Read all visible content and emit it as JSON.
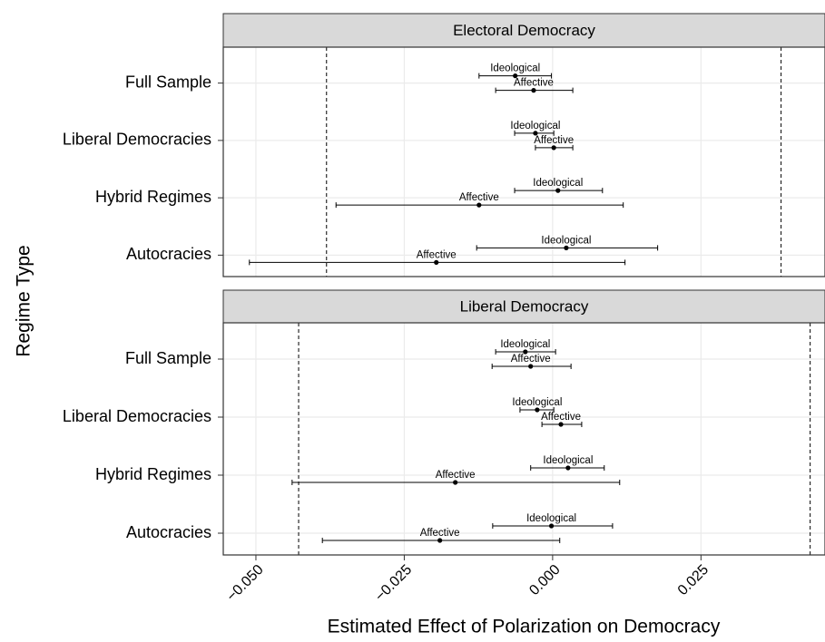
{
  "chart_data": [
    {
      "type": "pointrange",
      "title": "Electoral Democracy",
      "ylabel": "Regime Type",
      "categories": [
        "Full Sample",
        "Liberal Democracies",
        "Hybrid Regimes",
        "Autocracies"
      ],
      "series": [
        {
          "name": "Ideological",
          "color": "#000000",
          "values": [
            -0.0063,
            -0.0029,
            0.0009,
            0.0023
          ],
          "lower": [
            -0.0124,
            -0.0064,
            -0.0064,
            -0.0128
          ],
          "upper": [
            -0.0002,
            0.0002,
            0.0084,
            0.0177
          ]
        },
        {
          "name": "Affective",
          "color": "#000000",
          "values": [
            -0.0032,
            0.0002,
            -0.0124,
            -0.0196
          ],
          "lower": [
            -0.0096,
            -0.0029,
            -0.0365,
            -0.0511
          ],
          "upper": [
            0.0034,
            0.0034,
            0.0119,
            0.0122
          ]
        }
      ],
      "vlines": [
        -0.0381,
        0.0385
      ],
      "xlim": [
        -0.0555,
        0.0459
      ],
      "xticks": [
        -0.05,
        -0.025,
        0,
        0.025
      ],
      "grid": true
    },
    {
      "type": "pointrange",
      "title": "Liberal Democracy",
      "xlabel": "Estimated Effect of Polarization on Democracy",
      "categories": [
        "Full Sample",
        "Liberal Democracies",
        "Hybrid Regimes",
        "Autocracies"
      ],
      "series": [
        {
          "name": "Ideological",
          "color": "#000000",
          "values": [
            -0.0046,
            -0.0026,
            0.0026,
            -0.0002
          ],
          "lower": [
            -0.0096,
            -0.0055,
            -0.0037,
            -0.0101
          ],
          "upper": [
            0.0005,
            0.0002,
            0.0087,
            0.0101
          ]
        },
        {
          "name": "Affective",
          "color": "#000000",
          "values": [
            -0.0037,
            0.0014,
            -0.0164,
            -0.019
          ],
          "lower": [
            -0.0102,
            -0.0018,
            -0.0439,
            -0.0388
          ],
          "upper": [
            0.0031,
            0.0049,
            0.0113,
            0.0012
          ]
        }
      ],
      "vlines": [
        -0.0428,
        0.0434
      ],
      "xlim": [
        -0.0555,
        0.0459
      ],
      "xticks": [
        {
          "value": -0.05,
          "label": "−0.050"
        },
        {
          "value": -0.025,
          "label": "−0.025"
        },
        {
          "value": 0,
          "label": "0.000"
        },
        0.025
      ],
      "grid": true
    }
  ]
}
